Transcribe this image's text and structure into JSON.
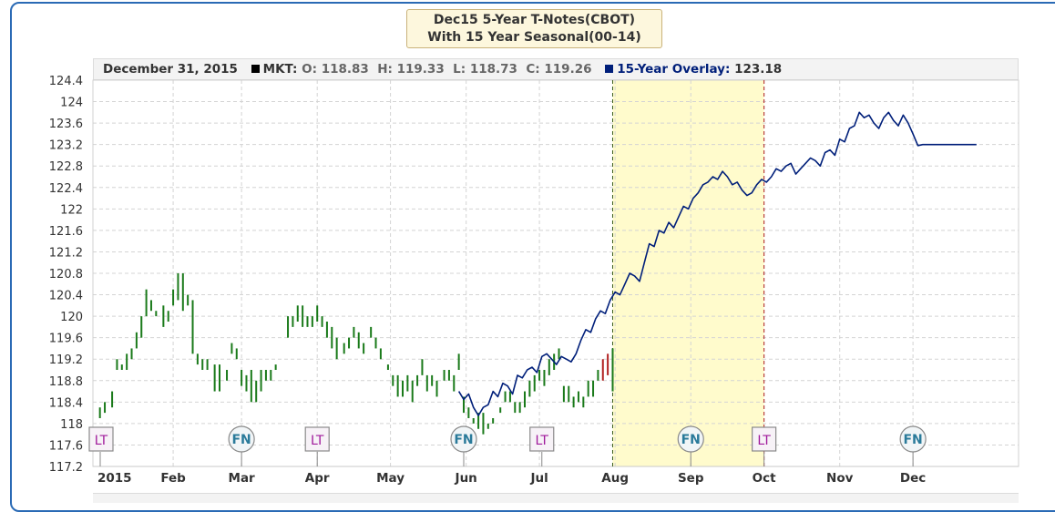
{
  "title": {
    "line1": "Dec15 5-Year T-Notes(CBOT)",
    "line2": "With 15 Year Seasonal(00-14)"
  },
  "info": {
    "date": "December 31, 2015",
    "mkt_label": "MKT:",
    "o_label": "O:",
    "o": "118.83",
    "h_label": "H:",
    "h": "119.33",
    "l_label": "L:",
    "l": "118.73",
    "c_label": "C:",
    "c": "119.26",
    "overlay_label": "15-Year Overlay:",
    "overlay": "123.18"
  },
  "colors": {
    "price_bar": "#1a7a1a",
    "price_bar_down": "#b22222",
    "overlay_line": "#001f7a",
    "highlight": "#fffbcc",
    "event_lt": "#a0199b",
    "event_fn": "#2a7a9a",
    "frame": "#2a6ab5"
  },
  "chart_data": {
    "type": "line",
    "x_ticks": [
      {
        "day": 0,
        "label": "2015"
      },
      {
        "day": 31,
        "label": "Feb"
      },
      {
        "day": 59,
        "label": "Mar"
      },
      {
        "day": 90,
        "label": "Apr"
      },
      {
        "day": 120,
        "label": "May"
      },
      {
        "day": 151,
        "label": "Jun"
      },
      {
        "day": 181,
        "label": "Jul"
      },
      {
        "day": 212,
        "label": "Aug"
      },
      {
        "day": 243,
        "label": "Sep"
      },
      {
        "day": 273,
        "label": "Oct"
      },
      {
        "day": 304,
        "label": "Nov"
      },
      {
        "day": 334,
        "label": "Dec"
      }
    ],
    "x_range": [
      0,
      365
    ],
    "ylim": [
      117.2,
      124.4
    ],
    "y_ticks": [
      "117.2",
      "117.6",
      "118",
      "118.4",
      "118.8",
      "119.2",
      "119.6",
      "120",
      "120.4",
      "120.8",
      "121.2",
      "121.6",
      "122",
      "122.4",
      "122.8",
      "123.2",
      "123.6",
      "124",
      "124.4"
    ],
    "grid": true,
    "highlight_range": [
      211,
      273
    ],
    "events": [
      {
        "day": 0,
        "label": "LT"
      },
      {
        "day": 59,
        "label": "FN"
      },
      {
        "day": 90,
        "label": "LT"
      },
      {
        "day": 150,
        "label": "FN"
      },
      {
        "day": 182,
        "label": "LT"
      },
      {
        "day": 243,
        "label": "FN"
      },
      {
        "day": 273,
        "label": "LT"
      },
      {
        "day": 334,
        "label": "FN"
      }
    ],
    "price_series": {
      "name": "MKT",
      "bars": [
        [
          1,
          118.1,
          118.3
        ],
        [
          3,
          118.2,
          118.4
        ],
        [
          6,
          118.3,
          118.6
        ],
        [
          8,
          119.0,
          119.2
        ],
        [
          10,
          119.0,
          119.1
        ],
        [
          12,
          119.0,
          119.3
        ],
        [
          14,
          119.2,
          119.4
        ],
        [
          16,
          119.4,
          119.7
        ],
        [
          18,
          119.6,
          120.0
        ],
        [
          20,
          120.0,
          120.5
        ],
        [
          22,
          120.1,
          120.3
        ],
        [
          24,
          120.0,
          120.1
        ],
        [
          27,
          119.8,
          120.2
        ],
        [
          29,
          119.9,
          120.1
        ],
        [
          31,
          120.2,
          120.5
        ],
        [
          33,
          120.3,
          120.8
        ],
        [
          35,
          120.1,
          120.8
        ],
        [
          37,
          120.2,
          120.4
        ],
        [
          39,
          119.3,
          120.3
        ],
        [
          41,
          119.1,
          119.3
        ],
        [
          43,
          119.0,
          119.2
        ],
        [
          45,
          119.0,
          119.2
        ],
        [
          48,
          118.6,
          119.1
        ],
        [
          50,
          118.6,
          119.1
        ],
        [
          53,
          118.8,
          119.0
        ],
        [
          55,
          119.3,
          119.5
        ],
        [
          57,
          119.2,
          119.4
        ],
        [
          59,
          118.7,
          119.0
        ],
        [
          61,
          118.6,
          118.9
        ],
        [
          63,
          118.4,
          119.0
        ],
        [
          65,
          118.4,
          118.8
        ],
        [
          67,
          118.6,
          119.0
        ],
        [
          69,
          118.8,
          119.0
        ],
        [
          71,
          118.8,
          119.0
        ],
        [
          73,
          119.0,
          119.1
        ],
        [
          78,
          119.6,
          120.0
        ],
        [
          80,
          119.8,
          120.0
        ],
        [
          82,
          119.9,
          120.2
        ],
        [
          84,
          119.8,
          120.2
        ],
        [
          86,
          119.8,
          120.0
        ],
        [
          88,
          119.8,
          120.0
        ],
        [
          90,
          119.9,
          120.2
        ],
        [
          92,
          119.8,
          120.0
        ],
        [
          94,
          119.6,
          119.9
        ],
        [
          96,
          119.4,
          119.8
        ],
        [
          98,
          119.2,
          119.6
        ],
        [
          101,
          119.3,
          119.5
        ],
        [
          103,
          119.4,
          119.6
        ],
        [
          105,
          119.6,
          119.8
        ],
        [
          107,
          119.4,
          119.7
        ],
        [
          109,
          119.3,
          119.5
        ],
        [
          112,
          119.6,
          119.8
        ],
        [
          114,
          119.4,
          119.6
        ],
        [
          116,
          119.2,
          119.4
        ],
        [
          119,
          119.0,
          119.1
        ],
        [
          121,
          118.7,
          118.9
        ],
        [
          123,
          118.5,
          118.9
        ],
        [
          125,
          118.5,
          118.8
        ],
        [
          127,
          118.6,
          118.9
        ],
        [
          129,
          118.4,
          118.8
        ],
        [
          131,
          118.7,
          118.9
        ],
        [
          133,
          118.9,
          119.2
        ],
        [
          135,
          118.6,
          118.9
        ],
        [
          137,
          118.7,
          118.9
        ],
        [
          139,
          118.5,
          118.8
        ],
        [
          142,
          118.8,
          119.0
        ],
        [
          144,
          118.8,
          119.0
        ],
        [
          146,
          118.6,
          118.9
        ],
        [
          148,
          119.0,
          119.3
        ],
        [
          150,
          118.2,
          118.5
        ],
        [
          152,
          118.1,
          118.3
        ],
        [
          154,
          118.0,
          118.1
        ],
        [
          156,
          117.9,
          118.2
        ],
        [
          158,
          117.8,
          118.2
        ],
        [
          160,
          117.9,
          118.0
        ],
        [
          162,
          118.0,
          118.1
        ],
        [
          165,
          118.2,
          118.3
        ],
        [
          167,
          118.4,
          118.6
        ],
        [
          169,
          118.4,
          118.6
        ],
        [
          171,
          118.2,
          118.4
        ],
        [
          173,
          118.2,
          118.4
        ],
        [
          175,
          118.3,
          118.6
        ],
        [
          177,
          118.5,
          118.8
        ],
        [
          179,
          118.6,
          118.9
        ],
        [
          181,
          118.8,
          119.0
        ],
        [
          183,
          118.7,
          119.0
        ],
        [
          185,
          118.9,
          119.2
        ],
        [
          187,
          119.0,
          119.3
        ],
        [
          189,
          119.2,
          119.4
        ],
        [
          191,
          118.4,
          118.7
        ],
        [
          193,
          118.4,
          118.7
        ],
        [
          195,
          118.3,
          118.5
        ],
        [
          197,
          118.4,
          118.6
        ],
        [
          199,
          118.3,
          118.5
        ],
        [
          201,
          118.5,
          118.8
        ],
        [
          203,
          118.5,
          118.8
        ],
        [
          205,
          118.8,
          119.0
        ],
        [
          207,
          118.8,
          119.2
        ],
        [
          209,
          118.9,
          119.3
        ],
        [
          211,
          118.6,
          119.4
        ]
      ]
    },
    "overlay_series": {
      "name": "15-Year Overlay",
      "x": [
        148,
        150,
        152,
        154,
        156,
        158,
        160,
        162,
        164,
        166,
        168,
        170,
        172,
        174,
        176,
        178,
        180,
        182,
        184,
        186,
        188,
        190,
        192,
        194,
        196,
        198,
        200,
        202,
        204,
        206,
        208,
        210,
        212,
        214,
        216,
        218,
        220,
        222,
        224,
        226,
        228,
        230,
        232,
        234,
        236,
        238,
        240,
        242,
        244,
        246,
        248,
        250,
        252,
        254,
        256,
        258,
        260,
        262,
        264,
        266,
        268,
        270,
        272,
        274,
        276,
        278,
        280,
        282,
        284,
        286,
        288,
        290,
        292,
        294,
        296,
        298,
        300,
        302,
        304,
        306,
        308,
        310,
        312,
        314,
        316,
        318,
        320,
        322,
        324,
        326,
        328,
        330,
        332,
        334,
        336,
        338,
        340,
        342,
        344,
        346,
        348,
        350,
        352,
        354,
        356,
        358,
        360,
        362,
        364
      ],
      "y": [
        118.6,
        118.45,
        118.55,
        118.3,
        118.15,
        118.3,
        118.35,
        118.6,
        118.5,
        118.75,
        118.7,
        118.55,
        118.9,
        118.85,
        119.0,
        119.05,
        118.95,
        119.25,
        119.3,
        119.2,
        119.1,
        119.25,
        119.2,
        119.15,
        119.3,
        119.55,
        119.75,
        119.7,
        119.95,
        120.1,
        120.05,
        120.3,
        120.45,
        120.4,
        120.6,
        120.8,
        120.75,
        120.65,
        121.0,
        121.35,
        121.3,
        121.6,
        121.55,
        121.75,
        121.65,
        121.85,
        122.05,
        122.0,
        122.2,
        122.3,
        122.45,
        122.5,
        122.6,
        122.55,
        122.7,
        122.6,
        122.45,
        122.5,
        122.35,
        122.25,
        122.3,
        122.45,
        122.55,
        122.5,
        122.6,
        122.75,
        122.7,
        122.8,
        122.85,
        122.65,
        122.75,
        122.85,
        122.95,
        122.9,
        122.8,
        123.05,
        123.1,
        123.0,
        123.3,
        123.25,
        123.5,
        123.55,
        123.8,
        123.7,
        123.75,
        123.6,
        123.5,
        123.7,
        123.8,
        123.65,
        123.55,
        123.75,
        123.6,
        123.4,
        123.18,
        123.2,
        123.2,
        123.2,
        123.2,
        123.2,
        123.2,
        123.2,
        123.2,
        123.2,
        123.2,
        123.2,
        123.2,
        123.2,
        123.2
      ]
    }
  }
}
